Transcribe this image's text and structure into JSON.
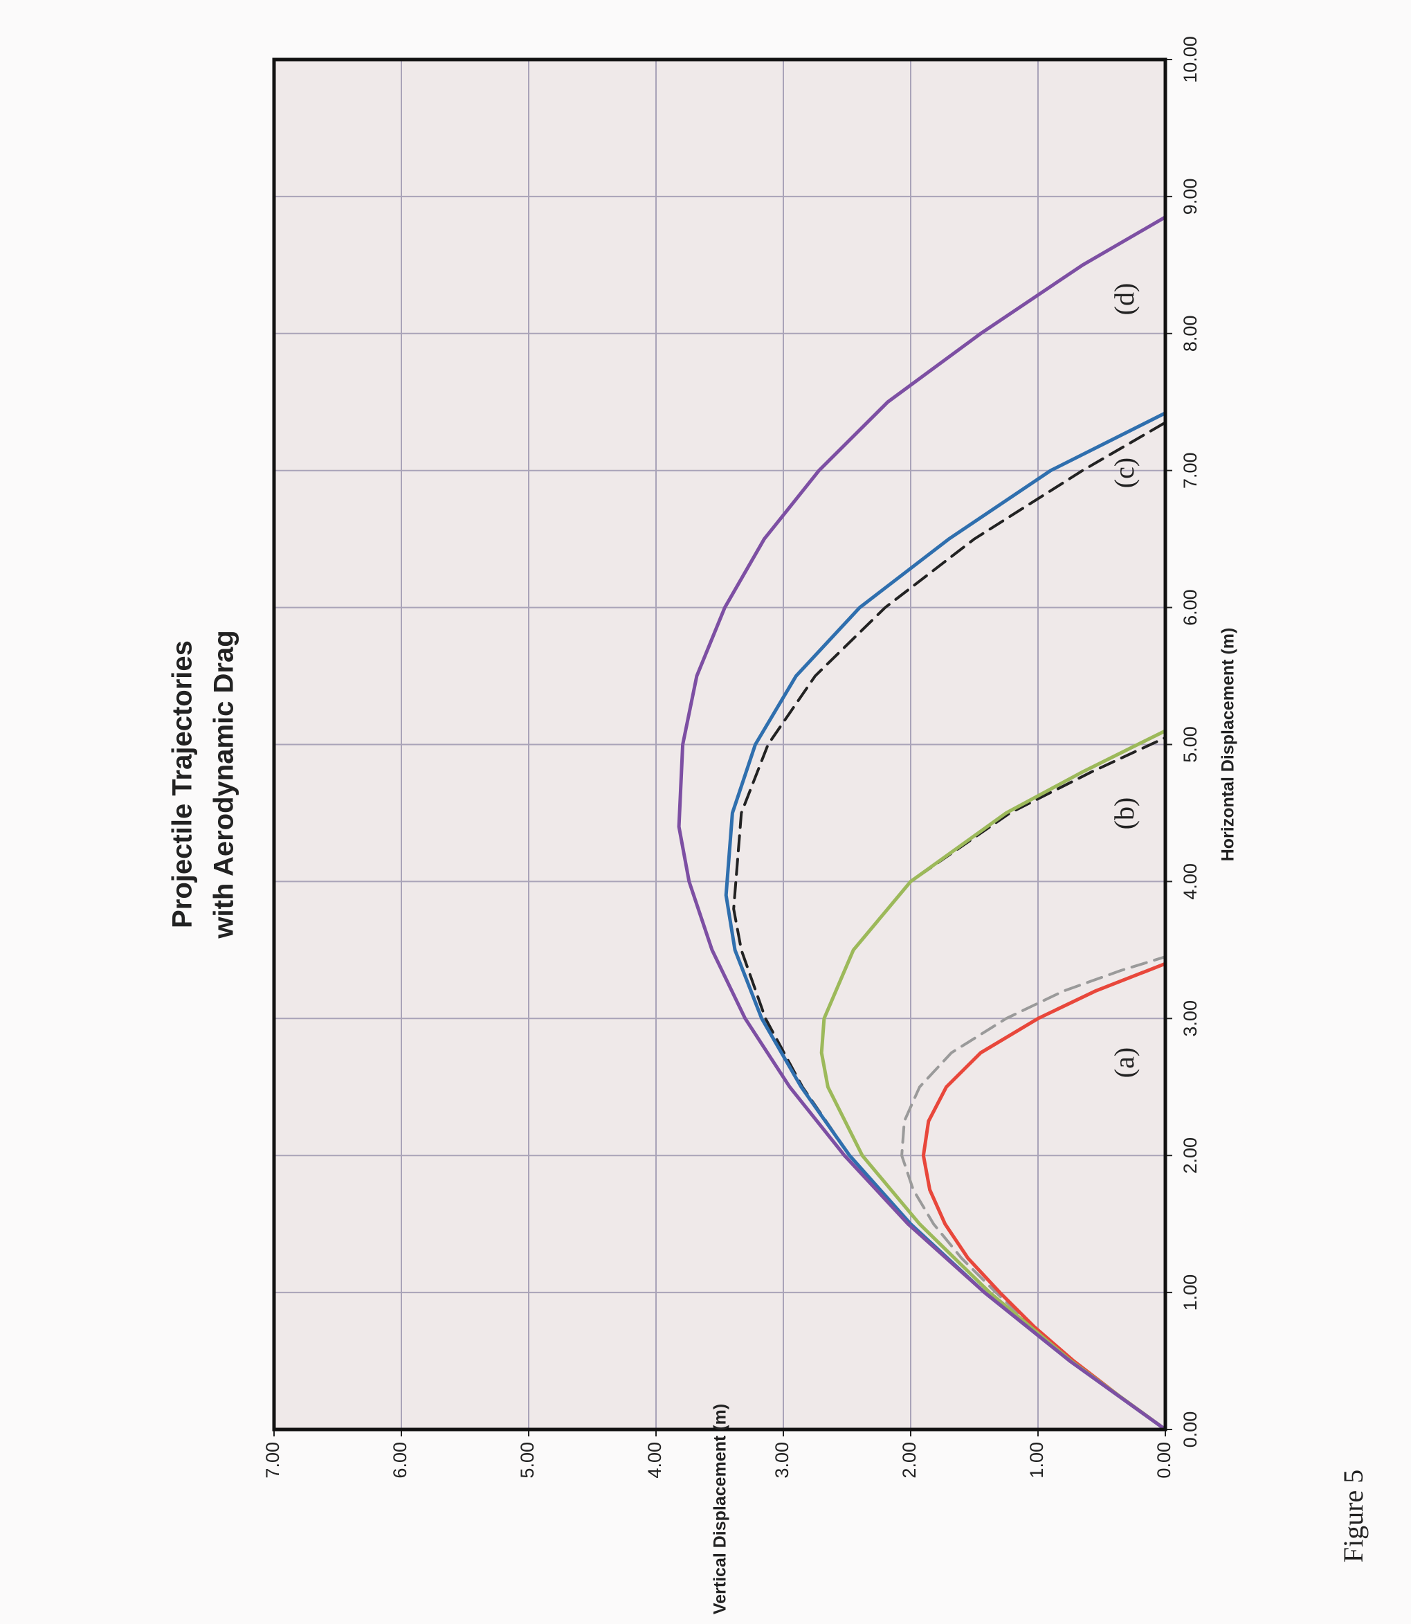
{
  "chart_data": {
    "type": "line",
    "title": [
      "Projectile Trajectories",
      "with Aerodynamic Drag"
    ],
    "x_label": "Horizontal Displacement (m)",
    "y_label": "Vertical Displacement (m)",
    "caption": "Figure 5",
    "annotations": [
      "(a)",
      "(b)",
      "(c)",
      "(d)"
    ],
    "xlim": [
      0,
      10
    ],
    "ylim": [
      0,
      7
    ],
    "xticks": [
      {
        "value": 0,
        "label": "0.00"
      },
      {
        "value": 1,
        "label": "1.00"
      },
      {
        "value": 2,
        "label": "2.00"
      },
      {
        "value": 3,
        "label": "3.00"
      },
      {
        "value": 4,
        "label": "4.00"
      },
      {
        "value": 5,
        "label": "5.00"
      },
      {
        "value": 6,
        "label": "6.00"
      },
      {
        "value": 7,
        "label": "7.00"
      },
      {
        "value": 8,
        "label": "8.00"
      },
      {
        "value": 9,
        "label": "9.00"
      },
      {
        "value": 10,
        "label": "10.00"
      }
    ],
    "yticks": [
      {
        "value": 0,
        "label": "0.00"
      },
      {
        "value": 1,
        "label": "1.00"
      },
      {
        "value": 2,
        "label": "2.00"
      },
      {
        "value": 3,
        "label": "3.00"
      },
      {
        "value": 4,
        "label": "4.00"
      },
      {
        "value": 5,
        "label": "5.00"
      },
      {
        "value": 6,
        "label": "6.00"
      },
      {
        "value": 7,
        "label": "7.00"
      }
    ],
    "grid": true,
    "rotated": true,
    "series": [
      {
        "color": "#9a9a9a",
        "dashed": true,
        "x": [
          0,
          0.25,
          0.5,
          0.75,
          1.0,
          1.25,
          1.5,
          1.75,
          2.0,
          2.25,
          2.5,
          2.75,
          3.0,
          3.2,
          3.35,
          3.45
        ],
        "values": [
          0,
          0.37,
          0.72,
          1.04,
          1.33,
          1.6,
          1.82,
          1.98,
          2.07,
          2.05,
          1.93,
          1.68,
          1.25,
          0.8,
          0.35,
          0
        ]
      },
      {
        "color": "#e8473b",
        "dashed": false,
        "x": [
          0,
          0.25,
          0.5,
          0.75,
          1.0,
          1.25,
          1.5,
          1.75,
          2.0,
          2.25,
          2.5,
          2.75,
          3.0,
          3.2,
          3.4
        ],
        "values": [
          0,
          0.37,
          0.72,
          1.03,
          1.3,
          1.55,
          1.73,
          1.85,
          1.9,
          1.86,
          1.72,
          1.45,
          1.0,
          0.55,
          0
        ]
      },
      {
        "color": "#222222",
        "dashed": true,
        "x": [
          0,
          0.5,
          1.0,
          1.5,
          2.0,
          2.5,
          2.75,
          3.0,
          3.5,
          4.0,
          4.5,
          4.8,
          5.05
        ],
        "values": [
          0,
          0.74,
          1.38,
          1.93,
          2.38,
          2.65,
          2.7,
          2.68,
          2.45,
          2.0,
          1.22,
          0.58,
          0
        ]
      },
      {
        "color": "#9cb95a",
        "dashed": false,
        "x": [
          0,
          0.5,
          1.0,
          1.5,
          2.0,
          2.5,
          2.75,
          3.0,
          3.5,
          4.0,
          4.5,
          4.8,
          5.1
        ],
        "values": [
          0,
          0.74,
          1.38,
          1.93,
          2.38,
          2.65,
          2.7,
          2.68,
          2.45,
          2.0,
          1.25,
          0.65,
          0
        ]
      },
      {
        "color": "#222222",
        "dashed": true,
        "x": [
          0,
          0.5,
          1.0,
          1.5,
          2.0,
          2.5,
          3.0,
          3.5,
          3.8,
          4.5,
          5.0,
          5.5,
          6.0,
          6.5,
          7.0,
          7.35
        ],
        "values": [
          0,
          0.75,
          1.42,
          2.0,
          2.48,
          2.85,
          3.14,
          3.33,
          3.39,
          3.33,
          3.12,
          2.75,
          2.2,
          1.5,
          0.65,
          0
        ]
      },
      {
        "color": "#2f6fae",
        "dashed": false,
        "x": [
          0,
          0.5,
          1.0,
          1.5,
          2.0,
          2.5,
          3.0,
          3.5,
          3.9,
          4.5,
          5.0,
          5.5,
          6.0,
          6.5,
          7.0,
          7.42
        ],
        "values": [
          0,
          0.75,
          1.42,
          2.0,
          2.48,
          2.86,
          3.17,
          3.38,
          3.45,
          3.4,
          3.22,
          2.9,
          2.4,
          1.7,
          0.9,
          0
        ]
      },
      {
        "color": "#7d4fa3",
        "dashed": false,
        "x": [
          0,
          0.5,
          1.0,
          1.5,
          2.0,
          2.5,
          3.0,
          3.5,
          4.0,
          4.4,
          5.0,
          5.5,
          6.0,
          6.5,
          7.0,
          7.5,
          8.0,
          8.5,
          8.85
        ],
        "values": [
          0,
          0.75,
          1.42,
          2.02,
          2.52,
          2.95,
          3.3,
          3.56,
          3.74,
          3.82,
          3.79,
          3.68,
          3.46,
          3.15,
          2.72,
          2.18,
          1.45,
          0.65,
          0
        ]
      }
    ]
  }
}
